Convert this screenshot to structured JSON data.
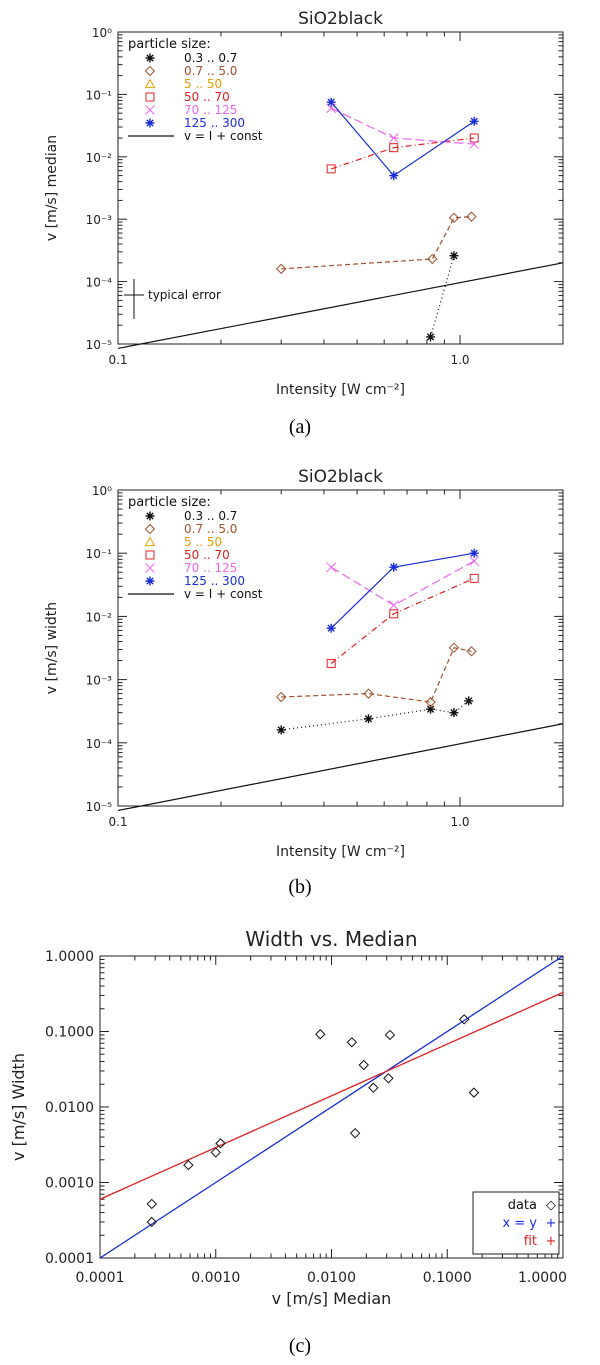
{
  "chart_data": [
    {
      "id": "a",
      "type": "line",
      "title": "SiO2black",
      "xlabel": "Intensity [W cm⁻²]",
      "ylabel": "v [m/s] median",
      "xscale": "log",
      "yscale": "log",
      "xlim": [
        0.1,
        2.0
      ],
      "ylim": [
        1e-05,
        1.0
      ],
      "x_ticks": [
        {
          "v": 0.1,
          "label": "0.1"
        },
        {
          "v": 1.0,
          "label": "1.0"
        }
      ],
      "y_ticks": [
        {
          "v": 1e-05,
          "label": "10⁻⁵"
        },
        {
          "v": 0.0001,
          "label": "10⁻⁴"
        },
        {
          "v": 0.001,
          "label": "10⁻³"
        },
        {
          "v": 0.01,
          "label": "10⁻²"
        },
        {
          "v": 0.1,
          "label": "10⁻¹"
        },
        {
          "v": 1.0,
          "label": "10⁰"
        }
      ],
      "caption": "(a)",
      "legend_title": "particle size:",
      "legend_position": "top-left",
      "annotation": "typical error",
      "series": [
        {
          "name": "0.3 .. 0.7",
          "color": "#111111",
          "marker": "asterisk",
          "dash": "1,3",
          "x": [
            0.82,
            0.96
          ],
          "y": [
            1.3e-05,
            0.00026
          ]
        },
        {
          "name": "0.7 .. 5.0",
          "color": "#a0522d",
          "marker": "diamond",
          "dash": "5,3",
          "x": [
            0.3,
            0.83,
            0.96,
            1.08
          ],
          "y": [
            0.00016,
            0.00023,
            0.00105,
            0.0011
          ]
        },
        {
          "name": "5 .. 50",
          "color": "#e6a000",
          "marker": "triangle",
          "dash": "none",
          "x": [],
          "y": []
        },
        {
          "name": "50 .. 70",
          "color": "#e02020",
          "marker": "square",
          "dash": "6,3,1,3",
          "x": [
            0.42,
            0.64,
            1.1
          ],
          "y": [
            0.0064,
            0.014,
            0.02
          ]
        },
        {
          "name": "70 .. 125",
          "color": "#ee66ee",
          "marker": "cross",
          "dash": "9,4",
          "x": [
            0.42,
            0.64,
            1.1
          ],
          "y": [
            0.06,
            0.02,
            0.016
          ]
        },
        {
          "name": "125 .. 300",
          "color": "#1a2ed8",
          "marker": "asterisk",
          "dash": "none",
          "x": [
            0.42,
            0.64,
            1.1
          ],
          "y": [
            0.075,
            0.005,
            0.037
          ]
        }
      ],
      "reference_line": {
        "name": "v = I + const",
        "color": "#111111",
        "x": [
          0.1,
          2.0
        ],
        "y": [
          8.5e-06,
          0.0002
        ]
      }
    },
    {
      "id": "b",
      "type": "line",
      "title": "SiO2black",
      "xlabel": "Intensity [W cm⁻²]",
      "ylabel": "v [m/s] width",
      "xscale": "log",
      "yscale": "log",
      "xlim": [
        0.1,
        2.0
      ],
      "ylim": [
        1e-05,
        1.0
      ],
      "x_ticks": [
        {
          "v": 0.1,
          "label": "0.1"
        },
        {
          "v": 1.0,
          "label": "1.0"
        }
      ],
      "y_ticks": [
        {
          "v": 1e-05,
          "label": "10⁻⁵"
        },
        {
          "v": 0.0001,
          "label": "10⁻⁴"
        },
        {
          "v": 0.001,
          "label": "10⁻³"
        },
        {
          "v": 0.01,
          "label": "10⁻²"
        },
        {
          "v": 0.1,
          "label": "10⁻¹"
        },
        {
          "v": 1.0,
          "label": "10⁰"
        }
      ],
      "caption": "(b)",
      "legend_title": "particle size:",
      "legend_position": "top-left",
      "series": [
        {
          "name": "0.3 .. 0.7",
          "color": "#111111",
          "marker": "asterisk",
          "dash": "1,3",
          "x": [
            0.3,
            0.54,
            0.82,
            0.96,
            1.06
          ],
          "y": [
            0.00016,
            0.00024,
            0.00034,
            0.0003,
            0.00046
          ]
        },
        {
          "name": "0.7 .. 5.0",
          "color": "#a0522d",
          "marker": "diamond",
          "dash": "5,3",
          "x": [
            0.3,
            0.54,
            0.82,
            0.96,
            1.08
          ],
          "y": [
            0.00053,
            0.0006,
            0.00044,
            0.0032,
            0.0028
          ]
        },
        {
          "name": "5 .. 50",
          "color": "#e6a000",
          "marker": "triangle",
          "dash": "none",
          "x": [],
          "y": []
        },
        {
          "name": "50 .. 70",
          "color": "#e02020",
          "marker": "square",
          "dash": "6,3,1,3",
          "x": [
            0.42,
            0.64,
            1.1
          ],
          "y": [
            0.0018,
            0.011,
            0.04
          ]
        },
        {
          "name": "70 .. 125",
          "color": "#ee66ee",
          "marker": "cross",
          "dash": "9,4",
          "x": [
            0.42,
            0.64,
            1.1
          ],
          "y": [
            0.06,
            0.015,
            0.075
          ]
        },
        {
          "name": "125 .. 300",
          "color": "#1a2ed8",
          "marker": "asterisk",
          "dash": "none",
          "x": [
            0.42,
            0.64,
            1.1
          ],
          "y": [
            0.0065,
            0.06,
            0.1
          ]
        }
      ],
      "reference_line": {
        "name": "v = I + const",
        "color": "#111111",
        "x": [
          0.1,
          2.0
        ],
        "y": [
          8.5e-06,
          0.0002
        ]
      }
    },
    {
      "id": "c",
      "type": "scatter",
      "title": "Width vs. Median",
      "xlabel": "v [m/s] Median",
      "ylabel": "v [m/s] Width",
      "xscale": "log",
      "yscale": "log",
      "xlim": [
        0.0001,
        1.0
      ],
      "ylim": [
        0.0001,
        1.0
      ],
      "x_ticks": [
        {
          "v": 0.0001,
          "label": "0.0001"
        },
        {
          "v": 0.001,
          "label": "0.0010"
        },
        {
          "v": 0.01,
          "label": "0.0100"
        },
        {
          "v": 0.1,
          "label": "0.1000"
        },
        {
          "v": 1.0,
          "label": "1.0000"
        }
      ],
      "y_ticks": [
        {
          "v": 0.0001,
          "label": "0.0001"
        },
        {
          "v": 0.001,
          "label": "0.0010"
        },
        {
          "v": 0.01,
          "label": "0.0100"
        },
        {
          "v": 0.1,
          "label": "0.1000"
        },
        {
          "v": 1.0,
          "label": "1.0000"
        }
      ],
      "caption": "(c)",
      "legend_position": "bottom-right",
      "legend": [
        {
          "name": "data",
          "color": "#111111",
          "symbol": "◇"
        },
        {
          "name": "x = y",
          "color": "#1a2ed8",
          "symbol": "+"
        },
        {
          "name": "fit",
          "color": "#e02020",
          "symbol": "+"
        }
      ],
      "points": {
        "x": [
          0.00028,
          0.00028,
          0.00058,
          0.001,
          0.0011,
          0.008,
          0.015,
          0.016,
          0.019,
          0.023,
          0.031,
          0.032,
          0.14,
          0.17
        ],
        "y": [
          0.0003,
          0.00052,
          0.0017,
          0.0025,
          0.0033,
          0.092,
          0.072,
          0.0045,
          0.036,
          0.018,
          0.024,
          0.09,
          0.145,
          0.0155
        ]
      },
      "lines": [
        {
          "name": "x = y",
          "color": "#1a2ed8",
          "x": [
            0.0001,
            1.0
          ],
          "y": [
            0.0001,
            1.0
          ]
        },
        {
          "name": "fit",
          "color": "#e02020",
          "x": [
            0.0001,
            1.0
          ],
          "y": [
            0.0006,
            0.33
          ]
        }
      ]
    }
  ]
}
